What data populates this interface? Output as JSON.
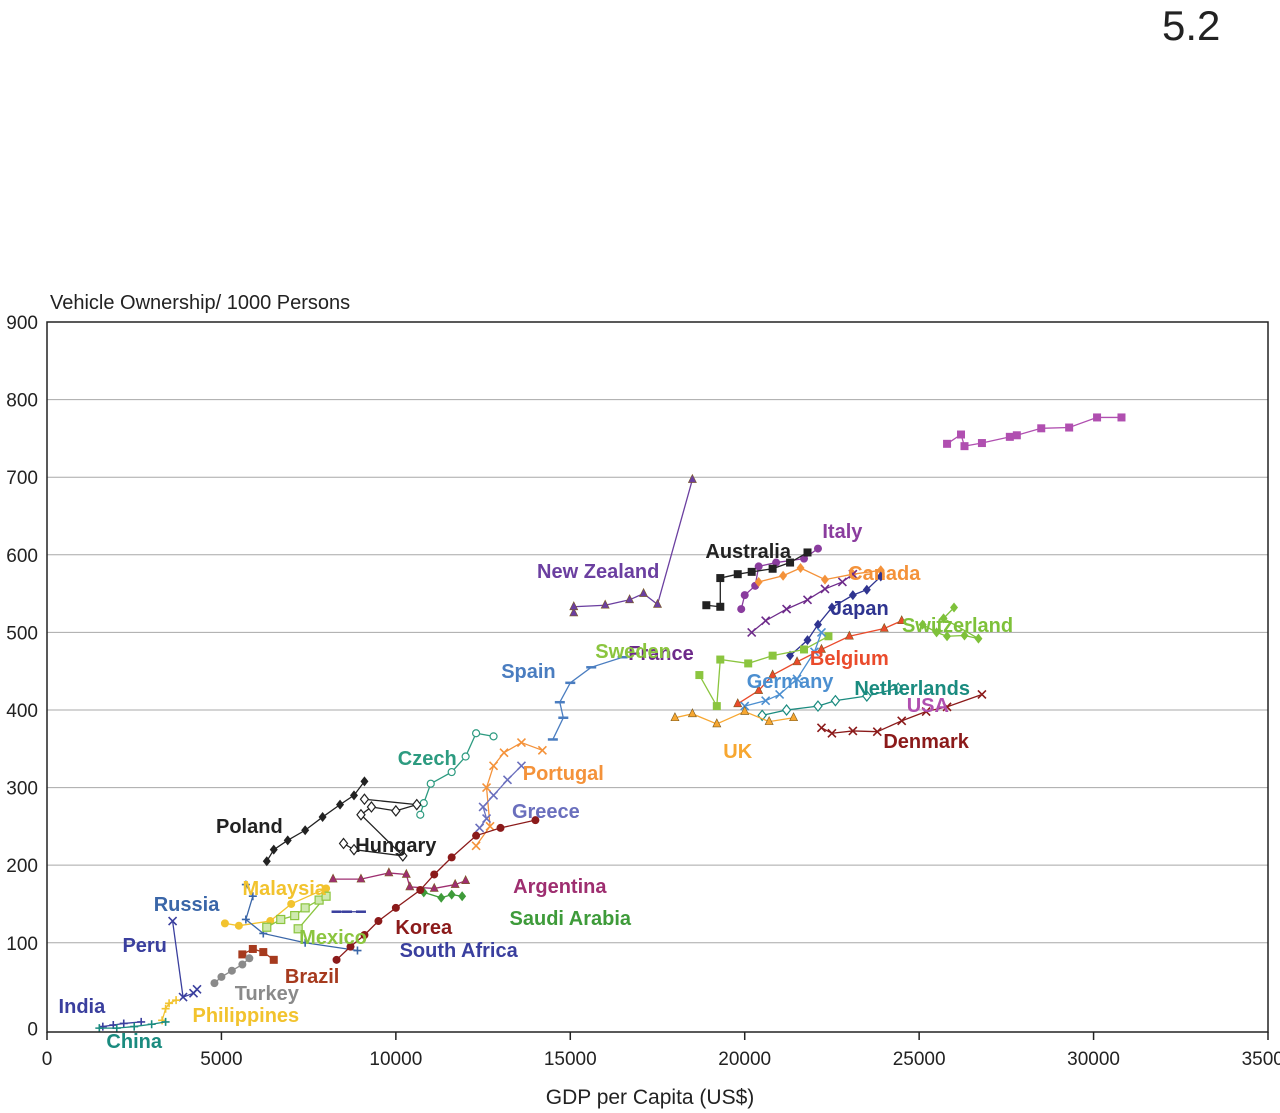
{
  "slide_number": "5.2",
  "chart_data": {
    "type": "scatter",
    "title": "",
    "xlabel": "GDP per Capita (US$)",
    "ylabel": "Vehicle Ownership/ 1000 Persons",
    "xlim": [
      0,
      35000
    ],
    "ylim": [
      -15,
      900
    ],
    "xticks": [
      0,
      5000,
      10000,
      15000,
      20000,
      25000,
      30000,
      35000
    ],
    "xtick_labels": [
      "0",
      "5000",
      "10000",
      "15000",
      "20000",
      "25000",
      "30000",
      "35000"
    ],
    "yticks": [
      0,
      100,
      200,
      300,
      400,
      500,
      600,
      700,
      800,
      900
    ],
    "ytick_labels": [
      "0",
      "100",
      "200",
      "300",
      "400",
      "500",
      "600",
      "700",
      "800",
      "900"
    ],
    "grid": "horizontal",
    "legend": "none (series labelled directly on the plot)",
    "series": [
      {
        "name": "USA",
        "color": "#b04fb0",
        "marker": "square",
        "label_at": [
          25250,
          712
        ],
        "points": [
          [
            25800,
            743
          ],
          [
            26200,
            755
          ],
          [
            26300,
            740
          ],
          [
            26800,
            744
          ],
          [
            27600,
            752
          ],
          [
            27800,
            754
          ],
          [
            28500,
            763
          ],
          [
            29300,
            764
          ],
          [
            30100,
            777
          ],
          [
            30800,
            777
          ]
        ]
      },
      {
        "name": "New Zealand",
        "color": "#6b3fa0",
        "marker": "triangle",
        "label_at": [
          15800,
          578
        ],
        "points": [
          [
            15100,
            525
          ],
          [
            15100,
            533
          ],
          [
            16000,
            535
          ],
          [
            16700,
            542
          ],
          [
            17100,
            550
          ],
          [
            17500,
            536
          ],
          [
            18500,
            697
          ]
        ]
      },
      {
        "name": "Italy",
        "color": "#8a3c9e",
        "marker": "circle",
        "label_at": [
          22800,
          538
        ],
        "points": [
          [
            19900,
            530
          ],
          [
            20000,
            548
          ],
          [
            20300,
            560
          ],
          [
            20400,
            585
          ],
          [
            20900,
            590
          ],
          [
            21700,
            595
          ],
          [
            22100,
            608
          ]
        ]
      },
      {
        "name": "Australia",
        "color": "#222222",
        "marker": "square",
        "label_at": [
          20100,
          558
        ],
        "points": [
          [
            18900,
            535
          ],
          [
            19300,
            533
          ],
          [
            19300,
            570
          ],
          [
            19800,
            575
          ],
          [
            20200,
            578
          ],
          [
            20800,
            582
          ],
          [
            21300,
            590
          ],
          [
            21800,
            603
          ]
        ]
      },
      {
        "name": "Canada",
        "color": "#f4923a",
        "marker": "diamond",
        "label_at": [
          24000,
          580
        ],
        "points": [
          [
            20400,
            565
          ],
          [
            21100,
            573
          ],
          [
            21600,
            583
          ],
          [
            22300,
            568
          ],
          [
            23100,
            575
          ],
          [
            23900,
            580
          ]
        ]
      },
      {
        "name": "Japan",
        "color": "#2f3490",
        "marker": "diamond",
        "label_at": [
          23300,
          615
        ],
        "points": [
          [
            21300,
            470
          ],
          [
            21800,
            490
          ],
          [
            22100,
            510
          ],
          [
            22500,
            532
          ],
          [
            23100,
            548
          ],
          [
            23500,
            555
          ],
          [
            23900,
            572
          ]
        ]
      },
      {
        "name": "Switzerland",
        "color": "#7ec13a",
        "marker": "diamond",
        "label_at": [
          26100,
          632
        ],
        "points": [
          [
            25100,
            510
          ],
          [
            25500,
            500
          ],
          [
            25800,
            495
          ],
          [
            26300,
            496
          ],
          [
            26700,
            492
          ],
          [
            25700,
            518
          ],
          [
            26000,
            532
          ]
        ]
      },
      {
        "name": "France",
        "color": "#6d2a8a",
        "marker": "x",
        "label_at": [
          17600,
          660
        ],
        "points": [
          [
            20200,
            500
          ],
          [
            20600,
            515
          ],
          [
            21200,
            530
          ],
          [
            21800,
            542
          ],
          [
            22300,
            556
          ],
          [
            22800,
            565
          ],
          [
            23100,
            575
          ]
        ]
      },
      {
        "name": "Belgium",
        "color": "#ea4b2c",
        "marker": "triangle",
        "label_at": [
          23000,
          665
        ],
        "points": [
          [
            19800,
            408
          ],
          [
            20400,
            425
          ],
          [
            20800,
            445
          ],
          [
            21500,
            462
          ],
          [
            22200,
            478
          ],
          [
            23000,
            495
          ],
          [
            24000,
            505
          ],
          [
            24500,
            515
          ]
        ]
      },
      {
        "name": "Spain",
        "color": "#4a7dc0",
        "marker": "dash",
        "label_at": [
          13800,
          678
        ],
        "points": [
          [
            14500,
            362
          ],
          [
            14800,
            390
          ],
          [
            14700,
            410
          ],
          [
            15000,
            435
          ],
          [
            15600,
            455
          ],
          [
            16500,
            468
          ]
        ]
      },
      {
        "name": "Sweden",
        "color": "#8bc53f",
        "marker": "square",
        "label_at": [
          16800,
          658
        ],
        "points": [
          [
            18700,
            445
          ],
          [
            19200,
            405
          ],
          [
            19300,
            465
          ],
          [
            20100,
            460
          ],
          [
            20800,
            470
          ],
          [
            21700,
            478
          ],
          [
            22400,
            495
          ]
        ]
      },
      {
        "name": "Germany",
        "color": "#4c8fd0",
        "marker": "x",
        "label_at": [
          21300,
          688
        ],
        "points": [
          [
            20000,
            405
          ],
          [
            20600,
            412
          ],
          [
            21000,
            420
          ],
          [
            21500,
            440
          ],
          [
            22000,
            475
          ],
          [
            22200,
            500
          ]
        ]
      },
      {
        "name": "Netherlands",
        "color": "#1a8b7f",
        "marker": "diamond-open",
        "label_at": [
          24800,
          695
        ],
        "points": [
          [
            20500,
            393
          ],
          [
            21200,
            400
          ],
          [
            22100,
            405
          ],
          [
            22600,
            412
          ],
          [
            23500,
            418
          ],
          [
            24400,
            428
          ]
        ]
      },
      {
        "name": "UK",
        "color": "#f7a731",
        "marker": "triangle",
        "label_at": [
          19800,
          758
        ],
        "points": [
          [
            18000,
            390
          ],
          [
            18500,
            395
          ],
          [
            19200,
            382
          ],
          [
            20000,
            398
          ],
          [
            20700,
            385
          ],
          [
            21400,
            390
          ]
        ]
      },
      {
        "name": "Denmark",
        "color": "#8b1a1a",
        "marker": "x",
        "label_at": [
          25200,
          748
        ],
        "points": [
          [
            22200,
            377
          ],
          [
            22500,
            370
          ],
          [
            23100,
            373
          ],
          [
            23800,
            372
          ],
          [
            24500,
            386
          ],
          [
            25200,
            398
          ],
          [
            25800,
            404
          ],
          [
            26800,
            420
          ]
        ]
      },
      {
        "name": "Czech",
        "color": "#2d9b80",
        "marker": "circle-open",
        "label_at": [
          10900,
          765
        ],
        "points": [
          [
            10700,
            265
          ],
          [
            10800,
            280
          ],
          [
            11000,
            305
          ],
          [
            11600,
            320
          ],
          [
            12000,
            340
          ],
          [
            12300,
            370
          ],
          [
            12800,
            366
          ]
        ]
      },
      {
        "name": "Portugal",
        "color": "#f4923a",
        "marker": "x",
        "label_at": [
          14800,
          780
        ],
        "points": [
          [
            12300,
            225
          ],
          [
            12700,
            250
          ],
          [
            12600,
            300
          ],
          [
            12800,
            328
          ],
          [
            13100,
            345
          ],
          [
            13600,
            358
          ],
          [
            14200,
            348
          ]
        ]
      },
      {
        "name": "Greece",
        "color": "#6a6fbd",
        "marker": "x",
        "label_at": [
          14300,
          818
        ],
        "points": [
          [
            12400,
            248
          ],
          [
            12600,
            260
          ],
          [
            12500,
            275
          ],
          [
            12800,
            290
          ],
          [
            13200,
            310
          ],
          [
            13600,
            328
          ]
        ]
      },
      {
        "name": "Poland",
        "color": "#222222",
        "marker": "diamond",
        "label_at": [
          5800,
          833
        ],
        "points": [
          [
            6300,
            205
          ],
          [
            6500,
            220
          ],
          [
            6900,
            232
          ],
          [
            7400,
            245
          ],
          [
            7900,
            262
          ],
          [
            8400,
            278
          ],
          [
            8800,
            290
          ],
          [
            9100,
            308
          ]
        ]
      },
      {
        "name": "Hungary",
        "color": "#222222",
        "marker": "diamond-open",
        "label_at": [
          10000,
          852
        ],
        "points": [
          [
            8500,
            228
          ],
          [
            8800,
            220
          ],
          [
            10200,
            212
          ],
          [
            9000,
            265
          ],
          [
            9300,
            275
          ],
          [
            10000,
            270
          ],
          [
            10600,
            278
          ],
          [
            9100,
            285
          ]
        ]
      },
      {
        "name": "Malaysia",
        "color": "#f2c32e",
        "marker": "circle",
        "label_at": [
          6800,
          895
        ],
        "points": [
          [
            5100,
            125
          ],
          [
            5500,
            122
          ],
          [
            6400,
            128
          ],
          [
            7000,
            150
          ],
          [
            8000,
            170
          ]
        ]
      },
      {
        "name": "Russia",
        "color": "#3a66a8",
        "marker": "plus",
        "label_at": [
          4000,
          911
        ],
        "points": [
          [
            5700,
            175
          ],
          [
            5900,
            160
          ],
          [
            5700,
            130
          ],
          [
            6200,
            112
          ],
          [
            7400,
            100
          ],
          [
            8900,
            90
          ]
        ]
      },
      {
        "name": "Argentina",
        "color": "#9e2e70",
        "marker": "triangle",
        "label_at": [
          14700,
          893
        ],
        "points": [
          [
            8200,
            182
          ],
          [
            9000,
            182
          ],
          [
            9800,
            190
          ],
          [
            10300,
            188
          ],
          [
            10400,
            172
          ],
          [
            11100,
            170
          ],
          [
            11700,
            175
          ],
          [
            12000,
            180
          ]
        ]
      },
      {
        "name": "Saudi Arabia",
        "color": "#3e9b3a",
        "marker": "diamond",
        "label_at": [
          15000,
          925
        ],
        "points": [
          [
            10800,
            165
          ],
          [
            11300,
            158
          ],
          [
            11600,
            162
          ],
          [
            11900,
            160
          ]
        ]
      },
      {
        "name": "Mexico",
        "color": "#8bc53f",
        "marker": "square-open",
        "label_at": [
          8200,
          944
        ],
        "points": [
          [
            6300,
            120
          ],
          [
            6700,
            130
          ],
          [
            7100,
            135
          ],
          [
            7400,
            145
          ],
          [
            7800,
            155
          ],
          [
            8000,
            160
          ],
          [
            7200,
            118
          ]
        ]
      },
      {
        "name": "Korea",
        "color": "#8b1a1a",
        "marker": "circle",
        "label_at": [
          10800,
          934
        ],
        "points": [
          [
            8300,
            78
          ],
          [
            8700,
            95
          ],
          [
            9100,
            110
          ],
          [
            9500,
            128
          ],
          [
            10000,
            145
          ],
          [
            10700,
            168
          ],
          [
            11100,
            188
          ],
          [
            11600,
            210
          ],
          [
            12300,
            238
          ],
          [
            13000,
            248
          ],
          [
            14000,
            258
          ]
        ]
      },
      {
        "name": "South Africa",
        "color": "#3a3f9e",
        "marker": "dash",
        "label_at": [
          11800,
          957
        ],
        "points": [
          [
            8300,
            140
          ],
          [
            8600,
            140
          ],
          [
            9000,
            140
          ]
        ]
      },
      {
        "name": "Peru",
        "color": "#3a3f9e",
        "marker": "x",
        "label_at": [
          2800,
          952
        ],
        "points": [
          [
            3600,
            128
          ],
          [
            3900,
            30
          ],
          [
            4200,
            35
          ],
          [
            4300,
            40
          ]
        ]
      },
      {
        "name": "Brazil",
        "color": "#a63a1e",
        "marker": "square",
        "label_at": [
          7600,
          983
        ],
        "points": [
          [
            5600,
            85
          ],
          [
            5900,
            92
          ],
          [
            6200,
            88
          ],
          [
            6500,
            78
          ]
        ]
      },
      {
        "name": "Turkey",
        "color": "#8a8a8a",
        "marker": "circle",
        "label_at": [
          6300,
          1000
        ],
        "points": [
          [
            4800,
            48
          ],
          [
            5000,
            56
          ],
          [
            5300,
            64
          ],
          [
            5600,
            72
          ],
          [
            5800,
            80
          ]
        ]
      },
      {
        "name": "India",
        "color": "#3a3f9e",
        "marker": "plus",
        "label_at": [
          1000,
          1013
        ],
        "points": [
          [
            1600,
            -8
          ],
          [
            1900,
            -6
          ],
          [
            2200,
            -4
          ],
          [
            2700,
            -2
          ]
        ]
      },
      {
        "name": "Philippines",
        "color": "#f2c32e",
        "marker": "plus",
        "label_at": [
          5700,
          1022
        ],
        "points": [
          [
            3300,
            0
          ],
          [
            3400,
            15
          ],
          [
            3500,
            22
          ],
          [
            3700,
            26
          ]
        ]
      },
      {
        "name": "China",
        "color": "#1a8b7f",
        "marker": "plus",
        "label_at": [
          2500,
          1048
        ],
        "points": [
          [
            1500,
            -10
          ],
          [
            2000,
            -10
          ],
          [
            2500,
            -8
          ],
          [
            3000,
            -5
          ],
          [
            3400,
            -2
          ]
        ]
      }
    ]
  }
}
